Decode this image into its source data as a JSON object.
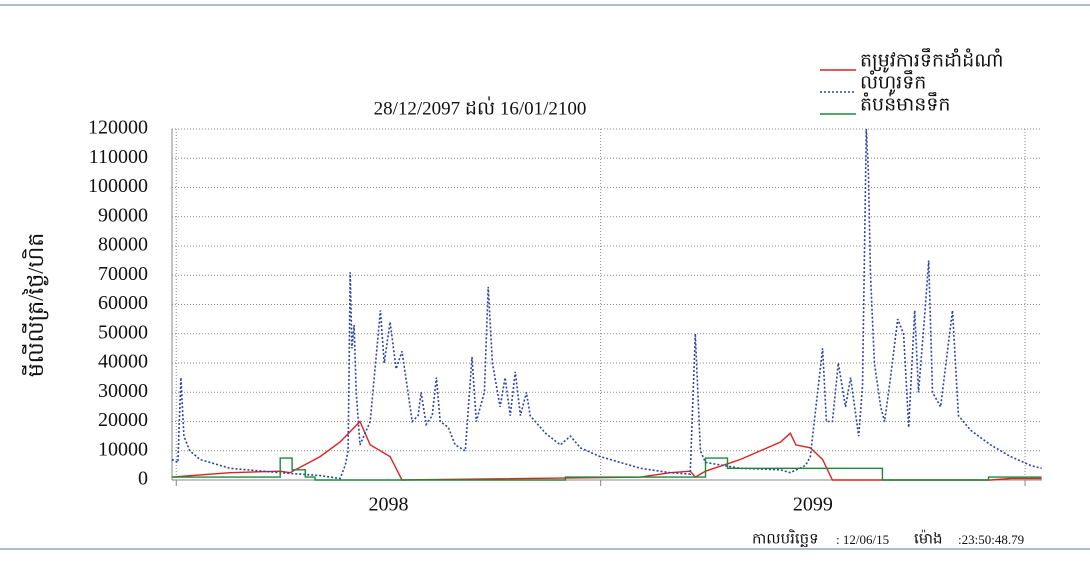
{
  "chart_data": {
    "type": "line",
    "title": "28/12/2097 ដល់ 16/01/2100",
    "ylabel": "មីលីលីត្រ/ថ្ងៃ/ហិត",
    "xlim": [
      2097.99,
      2100.04
    ],
    "xticks": [
      {
        "value": 2098.5,
        "label": "2098"
      },
      {
        "value": 2099.5,
        "label": "2099"
      }
    ],
    "xgrid": [
      2098,
      2099,
      2100
    ],
    "ylim": [
      0,
      120000
    ],
    "yticks": [
      0,
      10000,
      20000,
      30000,
      40000,
      50000,
      60000,
      70000,
      80000,
      90000,
      100000,
      110000,
      120000
    ],
    "grid": true,
    "legend": "top-right",
    "series": [
      {
        "name": "តម្រូវការទឹកដាំដំណាំ",
        "color": "#e02020",
        "dash": "solid",
        "x": [
          2097.99,
          2098.127,
          2098.245,
          2098.268,
          2098.339,
          2098.386,
          2098.433,
          2098.457,
          2098.481,
          2098.504,
          2098.532,
          2099.094,
          2099.164,
          2099.211,
          2099.223,
          2099.247,
          2099.329,
          2099.424,
          2099.447,
          2099.46,
          2099.494,
          2099.523,
          2099.546,
          2099.919,
          2099.966,
          2100.039
        ],
        "values": [
          1000,
          2500,
          3000,
          2500,
          8000,
          13000,
          20000,
          12000,
          10000,
          8000,
          0,
          1000,
          2500,
          3000,
          1000,
          3000,
          7000,
          13000,
          16000,
          12000,
          11000,
          7000,
          0,
          0,
          500,
          500
        ]
      },
      {
        "name": "លំហូរទឹក",
        "color": "#2a44a8",
        "dash": "dotted",
        "x": [
          2097.99,
          2098.004,
          2098.011,
          2098.018,
          2098.032,
          2098.056,
          2098.127,
          2098.245,
          2098.339,
          2098.386,
          2098.398,
          2098.405,
          2098.41,
          2098.414,
          2098.419,
          2098.424,
          2098.433,
          2098.457,
          2098.481,
          2098.49,
          2098.504,
          2098.518,
          2098.532,
          2098.546,
          2098.556,
          2098.57,
          2098.577,
          2098.589,
          2098.603,
          2098.613,
          2098.622,
          2098.641,
          2098.657,
          2098.681,
          2098.697,
          2098.707,
          2098.726,
          2098.735,
          2098.745,
          2098.763,
          2098.775,
          2098.787,
          2098.799,
          2098.811,
          2098.825,
          2098.834,
          2098.87,
          2098.905,
          2098.929,
          2098.952,
          2098.999,
          2099.094,
          2099.164,
          2099.211,
          2099.223,
          2099.235,
          2099.247,
          2099.329,
          2099.424,
          2099.447,
          2099.483,
          2099.494,
          2099.523,
          2099.532,
          2099.546,
          2099.56,
          2099.577,
          2099.589,
          2099.608,
          2099.617,
          2099.626,
          2099.631,
          2099.636,
          2099.645,
          2099.66,
          2099.669,
          2099.683,
          2099.7,
          2099.714,
          2099.726,
          2099.74,
          2099.749,
          2099.763,
          2099.773,
          2099.782,
          2099.801,
          2099.829,
          2099.843,
          2099.872,
          2099.919,
          2099.966,
          2100.013,
          2100.039
        ],
        "values": [
          7000,
          6000,
          35000,
          15000,
          10000,
          7000,
          4000,
          2500,
          1500,
          500,
          5000,
          10000,
          71000,
          45000,
          53000,
          30000,
          12000,
          20000,
          58000,
          40000,
          54000,
          38000,
          44000,
          30000,
          20000,
          22000,
          30000,
          19000,
          22000,
          35000,
          20000,
          18000,
          12000,
          10000,
          42000,
          20000,
          30000,
          66000,
          40000,
          25000,
          35000,
          22000,
          37000,
          22000,
          30000,
          22000,
          16000,
          12000,
          15000,
          11000,
          8000,
          4000,
          2500,
          2000,
          50000,
          10000,
          6000,
          4000,
          3500,
          2500,
          5000,
          8000,
          45000,
          20000,
          20000,
          40000,
          25000,
          35000,
          15000,
          32000,
          120000,
          105000,
          70000,
          40000,
          25000,
          20000,
          35000,
          55000,
          50000,
          18000,
          58000,
          30000,
          55000,
          75000,
          30000,
          25000,
          58000,
          22000,
          17000,
          12000,
          8000,
          5000,
          4000
        ]
      },
      {
        "name": "តំបន់មានទឹក",
        "color": "#1a8a3a",
        "dash": "solid",
        "x": [
          2097.99,
          2098.245,
          2098.245,
          2098.273,
          2098.273,
          2098.304,
          2098.304,
          2098.327,
          2098.327,
          2098.917,
          2098.917,
          2099.247,
          2099.247,
          2099.299,
          2099.299,
          2099.664,
          2099.664,
          2099.914,
          2099.914,
          2100.039
        ],
        "values": [
          1000,
          1000,
          7500,
          7500,
          3500,
          3500,
          1000,
          1000,
          0,
          0,
          1000,
          1000,
          7500,
          7500,
          4000,
          4000,
          0,
          0,
          1000,
          1000
        ]
      }
    ]
  },
  "footer": {
    "date_label": "កាលបរិច្ឆេទ",
    "date": ": 12/06/15",
    "time_label": "ម៉ោង",
    "time": ":23:50:48.79"
  }
}
